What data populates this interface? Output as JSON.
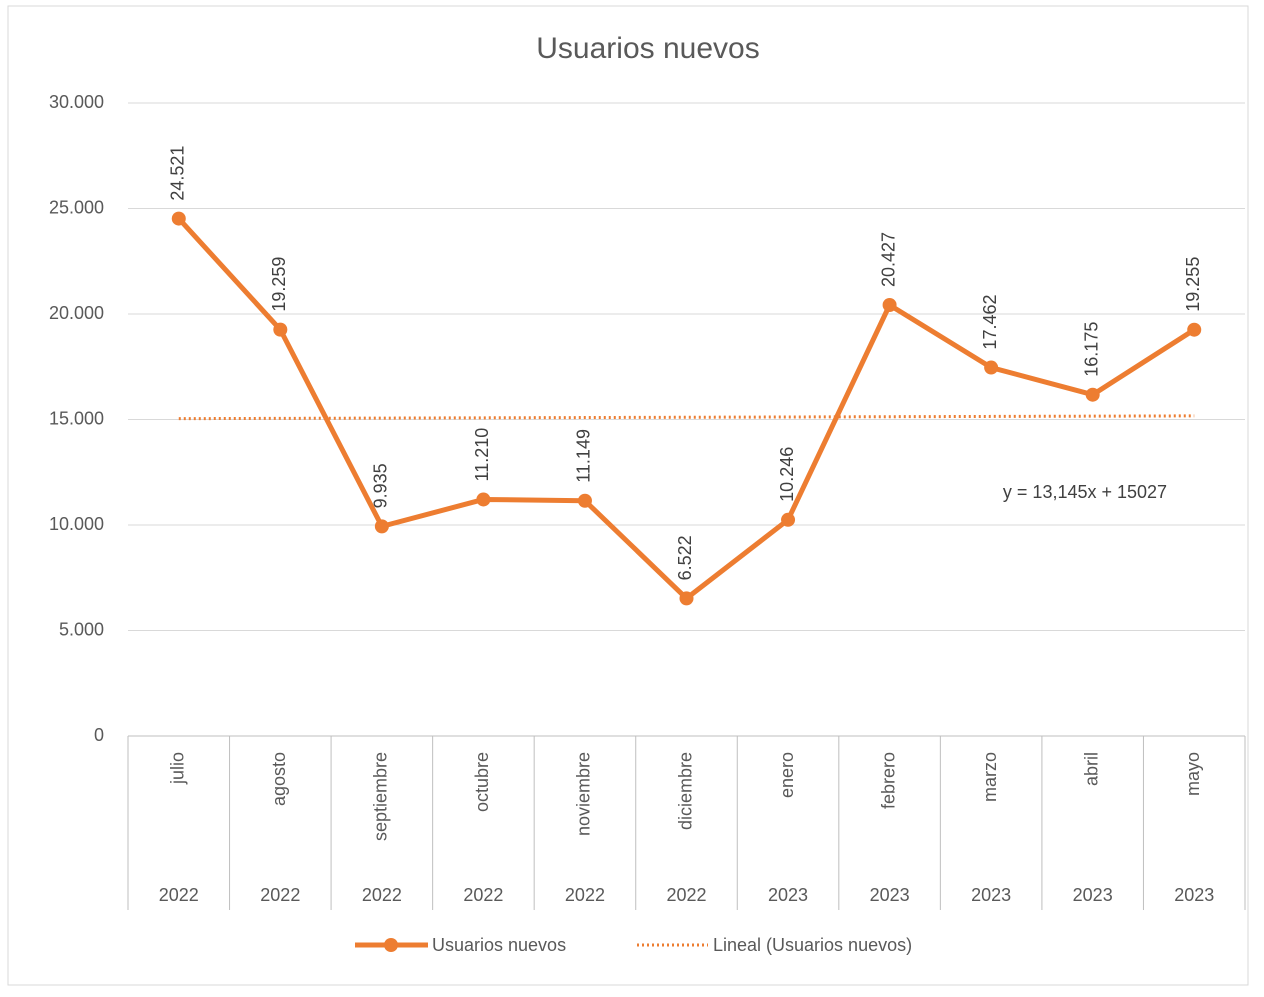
{
  "chart_data": {
    "type": "line",
    "title": "Usuarios nuevos",
    "categories": [
      "julio",
      "agosto",
      "septiembre",
      "octubre",
      "noviembre",
      "diciembre",
      "enero",
      "febrero",
      "marzo",
      "abril",
      "mayo"
    ],
    "category_groups": [
      "2022",
      "2022",
      "2022",
      "2022",
      "2022",
      "2022",
      "2023",
      "2023",
      "2023",
      "2023",
      "2023"
    ],
    "series": [
      {
        "name": "Usuarios nuevos",
        "color": "#ED7D31",
        "values": [
          24521,
          19259,
          9935,
          11210,
          11149,
          6522,
          10246,
          20427,
          17462,
          16175,
          19255
        ],
        "value_labels": [
          "24.521",
          "19.259",
          "9.935",
          "11.210",
          "11.149",
          "6.522",
          "10.246",
          "20.427",
          "17.462",
          "16.175",
          "19.255"
        ]
      }
    ],
    "trendline": {
      "name": "Lineal (Usuarios nuevos)",
      "slope": 13.145,
      "intercept": 15027,
      "label": "y = 13,145x + 15027",
      "color": "#ED7D31"
    },
    "ylim": [
      0,
      30000
    ],
    "yticks": [
      0,
      {
        "value": 5000,
        "label": "5.000"
      },
      {
        "value": 10000,
        "label": "10.000"
      },
      {
        "value": 15000,
        "label": "15.000"
      },
      {
        "value": 20000,
        "label": "20.000"
      },
      {
        "value": 25000,
        "label": "25.000"
      },
      {
        "value": 30000,
        "label": "30.000"
      }
    ],
    "grid": true,
    "legend": "bottom"
  }
}
